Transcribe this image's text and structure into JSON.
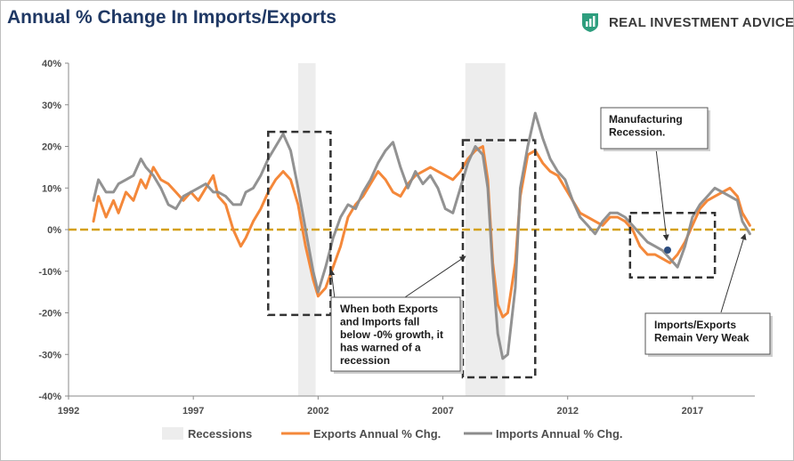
{
  "title": "Annual % Change In Imports/Exports",
  "brand": {
    "name": "REAL INVESTMENT ADVICE",
    "logo_icon": "bar-chart-shield-icon",
    "logo_color": "#2e9e7e"
  },
  "colors": {
    "exports": "#f4883a",
    "imports": "#8c8c8c",
    "recession": "#ededed",
    "zero_line": "#d4a017",
    "boxes": "#333333"
  },
  "annotations": [
    {
      "id": "warning",
      "lines": [
        "When both Exports",
        "and Imports fall",
        "below -0% growth, it",
        "has warned of a",
        "recession"
      ]
    },
    {
      "id": "manufacturing",
      "lines": [
        "Manufacturing",
        "Recession."
      ]
    },
    {
      "id": "weak",
      "lines": [
        "Imports/Exports",
        "Remain Very Weak"
      ]
    }
  ],
  "chart_data": {
    "type": "line",
    "xlim": [
      1992,
      2019.5
    ],
    "ylim": [
      -40,
      40
    ],
    "x_ticks": [
      1992,
      1997,
      2002,
      2007,
      2012,
      2017
    ],
    "x_tick_labels": [
      "1992",
      "1997",
      "2002",
      "2007",
      "2012",
      "2017"
    ],
    "y_ticks": [
      -40,
      -30,
      -20,
      -10,
      0,
      10,
      20,
      30,
      40
    ],
    "y_tick_labels": [
      "-40%",
      "-30%",
      "-20%",
      "-10%",
      "0%",
      "10%",
      "20%",
      "30%",
      "40%"
    ],
    "grid": false,
    "legend": "bottom",
    "recessions": [
      [
        2001.2,
        2001.9
      ],
      [
        2007.9,
        2009.5
      ]
    ],
    "highlight_boxes": [
      {
        "x": [
          2000.0,
          2002.5
        ],
        "y": [
          -20.5,
          23.5
        ]
      },
      {
        "x": [
          2007.8,
          2010.7
        ],
        "y": [
          -35.5,
          21.5
        ]
      },
      {
        "x": [
          2014.5,
          2017.9
        ],
        "y": [
          -11.5,
          4.0
        ]
      }
    ],
    "series": [
      {
        "name": "Exports Annual % Chg.",
        "color": "#f4883a",
        "points": [
          [
            1993.0,
            2
          ],
          [
            1993.2,
            8
          ],
          [
            1993.5,
            3
          ],
          [
            1993.8,
            7
          ],
          [
            1994.0,
            4
          ],
          [
            1994.3,
            9
          ],
          [
            1994.6,
            7
          ],
          [
            1994.9,
            12
          ],
          [
            1995.1,
            10
          ],
          [
            1995.4,
            15
          ],
          [
            1995.7,
            12
          ],
          [
            1996.0,
            11
          ],
          [
            1996.3,
            9
          ],
          [
            1996.6,
            7
          ],
          [
            1996.9,
            9
          ],
          [
            1997.2,
            7
          ],
          [
            1997.5,
            10
          ],
          [
            1997.8,
            13
          ],
          [
            1998.0,
            8
          ],
          [
            1998.3,
            6
          ],
          [
            1998.6,
            0
          ],
          [
            1998.9,
            -4
          ],
          [
            1999.1,
            -2
          ],
          [
            1999.4,
            2
          ],
          [
            1999.7,
            5
          ],
          [
            2000.0,
            9
          ],
          [
            2000.3,
            12
          ],
          [
            2000.6,
            14
          ],
          [
            2000.9,
            12
          ],
          [
            2001.2,
            6
          ],
          [
            2001.5,
            -4
          ],
          [
            2001.8,
            -12
          ],
          [
            2002.0,
            -16
          ],
          [
            2002.3,
            -14
          ],
          [
            2002.6,
            -9
          ],
          [
            2002.9,
            -4
          ],
          [
            2003.2,
            3
          ],
          [
            2003.5,
            6
          ],
          [
            2003.8,
            8
          ],
          [
            2004.1,
            11
          ],
          [
            2004.4,
            14
          ],
          [
            2004.7,
            12
          ],
          [
            2005.0,
            9
          ],
          [
            2005.3,
            8
          ],
          [
            2005.6,
            11
          ],
          [
            2005.9,
            13
          ],
          [
            2006.2,
            14
          ],
          [
            2006.5,
            15
          ],
          [
            2006.8,
            14
          ],
          [
            2007.1,
            13
          ],
          [
            2007.4,
            12
          ],
          [
            2007.7,
            14
          ],
          [
            2008.0,
            17
          ],
          [
            2008.3,
            19
          ],
          [
            2008.6,
            20
          ],
          [
            2008.8,
            12
          ],
          [
            2009.0,
            -8
          ],
          [
            2009.2,
            -18
          ],
          [
            2009.4,
            -21
          ],
          [
            2009.6,
            -20
          ],
          [
            2009.9,
            -8
          ],
          [
            2010.1,
            8
          ],
          [
            2010.4,
            18
          ],
          [
            2010.7,
            19
          ],
          [
            2011.0,
            16
          ],
          [
            2011.3,
            14
          ],
          [
            2011.6,
            13
          ],
          [
            2011.9,
            10
          ],
          [
            2012.2,
            7
          ],
          [
            2012.5,
            4
          ],
          [
            2012.8,
            3
          ],
          [
            2013.1,
            2
          ],
          [
            2013.4,
            1
          ],
          [
            2013.7,
            3
          ],
          [
            2014.0,
            3
          ],
          [
            2014.3,
            2
          ],
          [
            2014.6,
            0
          ],
          [
            2014.9,
            -4
          ],
          [
            2015.2,
            -6
          ],
          [
            2015.5,
            -6
          ],
          [
            2015.8,
            -7
          ],
          [
            2016.1,
            -8
          ],
          [
            2016.4,
            -6
          ],
          [
            2016.7,
            -3
          ],
          [
            2017.0,
            1
          ],
          [
            2017.3,
            5
          ],
          [
            2017.6,
            7
          ],
          [
            2017.9,
            8
          ],
          [
            2018.2,
            9
          ],
          [
            2018.5,
            10
          ],
          [
            2018.8,
            8
          ],
          [
            2019.0,
            4
          ],
          [
            2019.3,
            1
          ]
        ]
      },
      {
        "name": "Imports Annual % Chg.",
        "color": "#8c8c8c",
        "points": [
          [
            1993.0,
            7
          ],
          [
            1993.2,
            12
          ],
          [
            1993.5,
            9
          ],
          [
            1993.8,
            9
          ],
          [
            1994.0,
            11
          ],
          [
            1994.3,
            12
          ],
          [
            1994.6,
            13
          ],
          [
            1994.9,
            17
          ],
          [
            1995.1,
            15
          ],
          [
            1995.4,
            13
          ],
          [
            1995.7,
            10
          ],
          [
            1996.0,
            6
          ],
          [
            1996.3,
            5
          ],
          [
            1996.6,
            8
          ],
          [
            1996.9,
            9
          ],
          [
            1997.2,
            10
          ],
          [
            1997.5,
            11
          ],
          [
            1997.8,
            9
          ],
          [
            1998.0,
            9
          ],
          [
            1998.3,
            8
          ],
          [
            1998.6,
            6
          ],
          [
            1998.9,
            6
          ],
          [
            1999.1,
            9
          ],
          [
            1999.4,
            10
          ],
          [
            1999.7,
            13
          ],
          [
            2000.0,
            17
          ],
          [
            2000.3,
            20
          ],
          [
            2000.6,
            23
          ],
          [
            2000.9,
            19
          ],
          [
            2001.2,
            10
          ],
          [
            2001.5,
            0
          ],
          [
            2001.8,
            -10
          ],
          [
            2002.0,
            -15
          ],
          [
            2002.3,
            -9
          ],
          [
            2002.6,
            -2
          ],
          [
            2002.9,
            3
          ],
          [
            2003.2,
            6
          ],
          [
            2003.5,
            5
          ],
          [
            2003.8,
            9
          ],
          [
            2004.1,
            12
          ],
          [
            2004.4,
            16
          ],
          [
            2004.7,
            19
          ],
          [
            2005.0,
            21
          ],
          [
            2005.3,
            15
          ],
          [
            2005.6,
            10
          ],
          [
            2005.9,
            14
          ],
          [
            2006.2,
            11
          ],
          [
            2006.5,
            13
          ],
          [
            2006.8,
            10
          ],
          [
            2007.1,
            5
          ],
          [
            2007.4,
            4
          ],
          [
            2007.7,
            10
          ],
          [
            2008.0,
            16
          ],
          [
            2008.3,
            20
          ],
          [
            2008.6,
            18
          ],
          [
            2008.8,
            10
          ],
          [
            2009.0,
            -10
          ],
          [
            2009.2,
            -25
          ],
          [
            2009.4,
            -31
          ],
          [
            2009.6,
            -30
          ],
          [
            2009.9,
            -14
          ],
          [
            2010.1,
            10
          ],
          [
            2010.4,
            20
          ],
          [
            2010.7,
            28
          ],
          [
            2011.0,
            22
          ],
          [
            2011.3,
            17
          ],
          [
            2011.6,
            14
          ],
          [
            2011.9,
            12
          ],
          [
            2012.2,
            7
          ],
          [
            2012.5,
            3
          ],
          [
            2012.8,
            1
          ],
          [
            2013.1,
            -1
          ],
          [
            2013.4,
            2
          ],
          [
            2013.7,
            4
          ],
          [
            2014.0,
            4
          ],
          [
            2014.3,
            3
          ],
          [
            2014.6,
            1
          ],
          [
            2014.9,
            -1
          ],
          [
            2015.2,
            -3
          ],
          [
            2015.5,
            -4
          ],
          [
            2015.8,
            -5
          ],
          [
            2016.1,
            -7
          ],
          [
            2016.4,
            -9
          ],
          [
            2016.7,
            -4
          ],
          [
            2017.0,
            3
          ],
          [
            2017.3,
            6
          ],
          [
            2017.6,
            8
          ],
          [
            2017.9,
            10
          ],
          [
            2018.2,
            9
          ],
          [
            2018.5,
            8
          ],
          [
            2018.8,
            7
          ],
          [
            2019.0,
            2
          ],
          [
            2019.3,
            -1
          ]
        ]
      }
    ],
    "legend_items": [
      {
        "label": "Recessions",
        "kind": "bar",
        "color": "#ededed"
      },
      {
        "label": "Exports Annual % Chg.",
        "kind": "line",
        "color": "#f4883a"
      },
      {
        "label": "Imports Annual % Chg.",
        "kind": "line",
        "color": "#8c8c8c"
      }
    ]
  }
}
